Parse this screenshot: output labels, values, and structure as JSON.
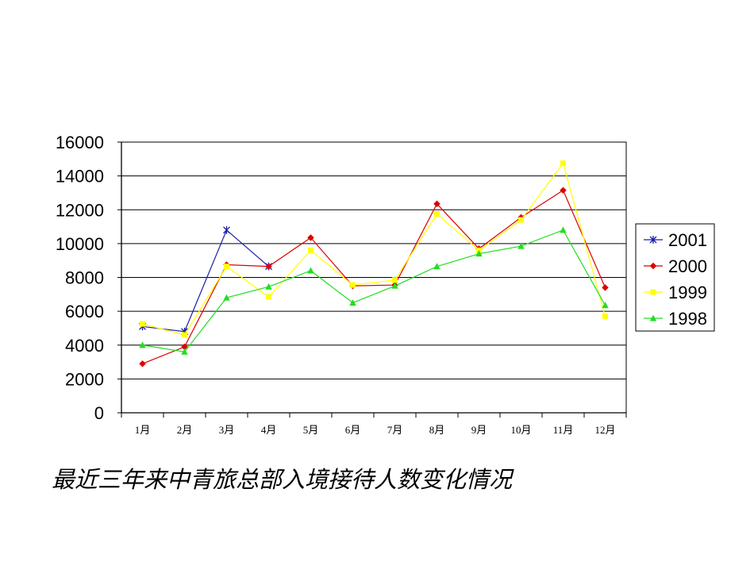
{
  "chart_data": {
    "type": "line",
    "title": "",
    "xlabel": "",
    "ylabel": "",
    "categories": [
      "1月",
      "2月",
      "3月",
      "4月",
      "5月",
      "6月",
      "7月",
      "8月",
      "9月",
      "10月",
      "11月",
      "12月"
    ],
    "ylim": [
      0,
      16000
    ],
    "yticks": [
      0,
      2000,
      4000,
      6000,
      8000,
      10000,
      12000,
      14000,
      16000
    ],
    "grid": true,
    "legend": "right",
    "series": [
      {
        "name": "2001",
        "color": "#1c1ca8",
        "marker": "asterisk",
        "values": [
          5100,
          4800,
          10800,
          8650,
          null,
          null,
          null,
          null,
          null,
          null,
          null,
          null
        ]
      },
      {
        "name": "2000",
        "color": "#dd0000",
        "marker": "diamond",
        "values": [
          2900,
          3900,
          8750,
          8650,
          10350,
          7500,
          7550,
          12350,
          9700,
          11550,
          13150,
          7400
        ]
      },
      {
        "name": "1999",
        "color": "#ffff00",
        "marker": "square",
        "values": [
          5250,
          4600,
          8650,
          6850,
          9600,
          7550,
          7850,
          11750,
          9600,
          11400,
          14750,
          5700
        ]
      },
      {
        "name": "1998",
        "color": "#22dd22",
        "marker": "triangle",
        "values": [
          4000,
          3600,
          6800,
          7450,
          8400,
          6500,
          7500,
          8650,
          9400,
          9850,
          10800,
          6350
        ]
      }
    ]
  },
  "caption": "最近三年来中青旅总部入境接待人数变化情况"
}
